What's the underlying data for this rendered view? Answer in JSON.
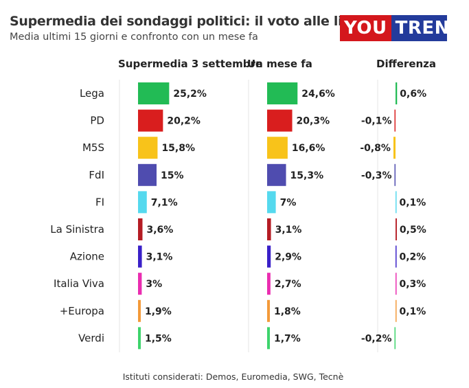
{
  "header": {
    "title": "Supermedia dei sondaggi politici: il voto alle liste",
    "subtitle": "Media ultimi 15 giorni e confronto con un mese fa",
    "logo_left": "YOU",
    "logo_right": "TREND"
  },
  "footer": "Istituti considerati: Demos, Euromedia, SWG, Tecnè",
  "chart_data": {
    "type": "bar",
    "columns": [
      "Supermedia 3 settembre",
      "Un mese fa",
      "Differenza"
    ],
    "categories": [
      "Lega",
      "PD",
      "M5S",
      "FdI",
      "FI",
      "La Sinistra",
      "Azione",
      "Italia Viva",
      "+Europa",
      "Verdi"
    ],
    "colors": [
      "#22bb55",
      "#d91e1e",
      "#f8c31a",
      "#4f4caf",
      "#55d9ee",
      "#b51c24",
      "#3a20c8",
      "#ea2db0",
      "#f39a3a",
      "#3ed46c"
    ],
    "series": [
      {
        "name": "Supermedia 3 settembre",
        "values": [
          25.2,
          20.2,
          15.8,
          15,
          7.1,
          3.6,
          3.1,
          3,
          1.9,
          1.5
        ],
        "labels": [
          "25,2%",
          "20,2%",
          "15,8%",
          "15%",
          "7,1%",
          "3,6%",
          "3,1%",
          "3%",
          "1,9%",
          "1,5%"
        ]
      },
      {
        "name": "Un mese fa",
        "values": [
          24.6,
          20.3,
          16.6,
          15.3,
          7,
          3.1,
          2.9,
          2.7,
          1.8,
          1.7
        ],
        "labels": [
          "24,6%",
          "20,3%",
          "16,6%",
          "15,3%",
          "7%",
          "3,1%",
          "2,9%",
          "2,7%",
          "1,8%",
          "1,7%"
        ]
      },
      {
        "name": "Differenza",
        "values": [
          0.6,
          -0.1,
          -0.8,
          -0.3,
          0.1,
          0.5,
          0.2,
          0.3,
          0.1,
          -0.2
        ],
        "labels": [
          "0,6%",
          "-0,1%",
          "-0,8%",
          "-0,3%",
          "0,1%",
          "0,5%",
          "0,2%",
          "0,3%",
          "0,1%",
          "-0,2%"
        ]
      }
    ]
  }
}
